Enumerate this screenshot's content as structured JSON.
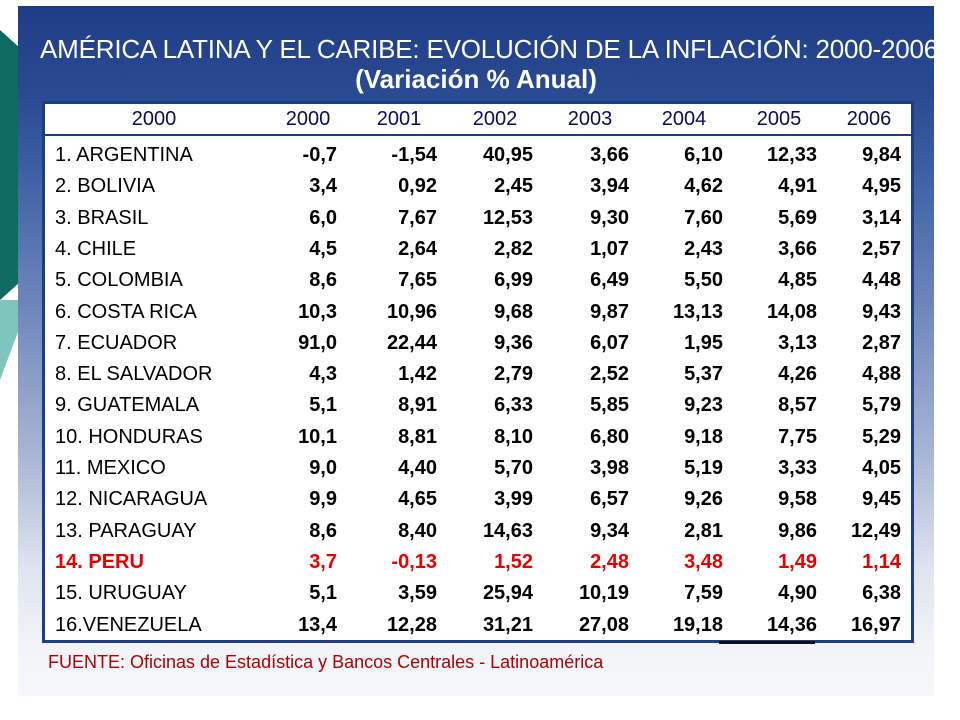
{
  "title": {
    "line1": "AMÉRICA LATINA Y EL CARIBE: EVOLUCIÓN DE LA INFLACIÓN: 2000-2006",
    "line2": "(Variación % Anual)"
  },
  "table": {
    "headers": [
      "2000",
      "2000",
      "2001",
      "2002",
      "2003",
      "2004",
      "2005",
      "2006"
    ],
    "rows": [
      {
        "country": "1. ARGENTINA",
        "values": [
          "-0,7",
          "-1,54",
          "40,95",
          "3,66",
          "6,10",
          "12,33",
          "9,84"
        ]
      },
      {
        "country": "2. BOLIVIA",
        "values": [
          "3,4",
          "0,92",
          "2,45",
          "3,94",
          "4,62",
          "4,91",
          "4,95"
        ]
      },
      {
        "country": "3. BRASIL",
        "values": [
          "6,0",
          "7,67",
          "12,53",
          "9,30",
          "7,60",
          "5,69",
          "3,14"
        ]
      },
      {
        "country": "4. CHILE",
        "values": [
          "4,5",
          "2,64",
          "2,82",
          "1,07",
          "2,43",
          "3,66",
          "2,57"
        ]
      },
      {
        "country": "5. COLOMBIA",
        "values": [
          "8,6",
          "7,65",
          "6,99",
          "6,49",
          "5,50",
          "4,85",
          "4,48"
        ]
      },
      {
        "country": "6. COSTA RICA",
        "values": [
          "10,3",
          "10,96",
          "9,68",
          "9,87",
          "13,13",
          "14,08",
          "9,43"
        ]
      },
      {
        "country": "7. ECUADOR",
        "values": [
          "91,0",
          "22,44",
          "9,36",
          "6,07",
          "1,95",
          "3,13",
          "2,87"
        ]
      },
      {
        "country": "8. EL SALVADOR",
        "values": [
          "4,3",
          "1,42",
          "2,79",
          "2,52",
          "5,37",
          "4,26",
          "4,88"
        ]
      },
      {
        "country": "9. GUATEMALA",
        "values": [
          "5,1",
          "8,91",
          "6,33",
          "5,85",
          "9,23",
          "8,57",
          "5,79"
        ]
      },
      {
        "country": "10. HONDURAS",
        "values": [
          "10,1",
          "8,81",
          "8,10",
          "6,80",
          "9,18",
          "7,75",
          "5,29"
        ]
      },
      {
        "country": "11. MEXICO",
        "values": [
          "9,0",
          "4,40",
          "5,70",
          "3,98",
          "5,19",
          "3,33",
          "4,05"
        ]
      },
      {
        "country": "12. NICARAGUA",
        "values": [
          "9,9",
          "4,65",
          "3,99",
          "6,57",
          "9,26",
          "9,58",
          "9,45"
        ]
      },
      {
        "country": "13. PARAGUAY",
        "values": [
          "8,6",
          "8,40",
          "14,63",
          "9,34",
          "2,81",
          "9,86",
          "12,49"
        ]
      },
      {
        "country": "14. PERU",
        "values": [
          "3,7",
          "-0,13",
          "1,52",
          "2,48",
          "3,48",
          "1,49",
          "1,14"
        ],
        "highlight": true
      },
      {
        "country": "15. URUGUAY",
        "values": [
          "5,1",
          "3,59",
          "25,94",
          "10,19",
          "7,59",
          "4,90",
          "6,38"
        ]
      },
      {
        "country": "16.VENEZUELA",
        "values": [
          "13,4",
          "12,28",
          "31,21",
          "27,08",
          "19,18",
          "14,36",
          "16,97"
        ]
      }
    ]
  },
  "source": "FUENTE: Oficinas de Estadística y Bancos Centrales - Latinoamérica",
  "colors": {
    "header_bg": "#1f3d86",
    "highlight": "#e80000",
    "source_text": "#b00000"
  }
}
